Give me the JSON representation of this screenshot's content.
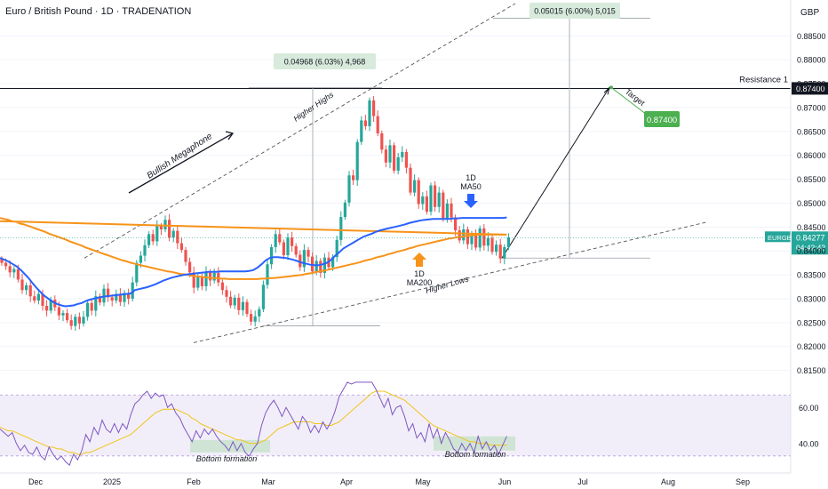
{
  "header": {
    "symbol_title": "Euro / British Pound · 1D · TRADENATION",
    "currency": "GBP"
  },
  "colors": {
    "bull": "#26a69a",
    "bear": "#ef5350",
    "ma50": "#2962ff",
    "ma200": "#f7931a",
    "rsi": "#7e57c2",
    "rsi_ma": "#f0c419",
    "label_green": "#4caf50",
    "label_bg": "#d7eadb",
    "rsi_band": "#ede7f6",
    "price_badge": "#26a69a"
  },
  "chart_data": {
    "type": "candlestick",
    "y_axis": {
      "range": [
        0.8125,
        0.8925
      ],
      "ticks": [
        "0.88500",
        "0.88000",
        "0.87500",
        "0.87000",
        "0.86500",
        "0.86000",
        "0.85500",
        "0.85000",
        "0.84500",
        "0.84000",
        "0.83500",
        "0.83000",
        "0.82500",
        "0.82000",
        "0.81500"
      ]
    },
    "rsi_axis": {
      "range": [
        33,
        70
      ],
      "ticks": [
        "60.00",
        "40.00"
      ]
    },
    "x_axis": {
      "labels": [
        "Dec",
        "2025",
        "Feb",
        "Mar",
        "Apr",
        "May",
        "Jun",
        "Jul",
        "Aug",
        "Sep"
      ]
    },
    "candles_close": [
      0.8375,
      0.8368,
      0.8355,
      0.8362,
      0.834,
      0.8318,
      0.8328,
      0.8305,
      0.8296,
      0.831,
      0.8285,
      0.8275,
      0.8298,
      0.8282,
      0.8265,
      0.827,
      0.8255,
      0.8243,
      0.8262,
      0.8248,
      0.8262,
      0.8291,
      0.8275,
      0.8305,
      0.8292,
      0.8321,
      0.8303,
      0.8296,
      0.831,
      0.8293,
      0.8312,
      0.83,
      0.8334,
      0.8375,
      0.839,
      0.8412,
      0.8435,
      0.842,
      0.8452,
      0.8445,
      0.8465,
      0.8428,
      0.8442,
      0.8416,
      0.8402,
      0.8377,
      0.8355,
      0.8323,
      0.8346,
      0.8326,
      0.8356,
      0.8338,
      0.8354,
      0.8334,
      0.8318,
      0.8304,
      0.8286,
      0.8302,
      0.8276,
      0.8293,
      0.8268,
      0.8252,
      0.8263,
      0.8278,
      0.8329,
      0.8372,
      0.8408,
      0.8435,
      0.8418,
      0.8391,
      0.8428,
      0.841,
      0.8392,
      0.8366,
      0.8402,
      0.8388,
      0.8357,
      0.8379,
      0.8354,
      0.8386,
      0.8366,
      0.8387,
      0.8423,
      0.8471,
      0.8501,
      0.8558,
      0.8548,
      0.8628,
      0.8673,
      0.8661,
      0.8715,
      0.8682,
      0.8646,
      0.8612,
      0.8585,
      0.8621,
      0.8568,
      0.8596,
      0.8607,
      0.8574,
      0.8522,
      0.8548,
      0.8498,
      0.8514,
      0.8482,
      0.8537,
      0.8492,
      0.8522,
      0.8467,
      0.8499,
      0.847,
      0.8443,
      0.8422,
      0.8445,
      0.8414,
      0.8433,
      0.8407,
      0.8447,
      0.8411,
      0.8427,
      0.8398,
      0.8413,
      0.8384,
      0.8408,
      0.8428
    ],
    "ma50": [
      0.8385,
      0.8382,
      0.8378,
      0.8373,
      0.8368,
      0.8361,
      0.8352,
      0.8343,
      0.8332,
      0.8322,
      0.8313,
      0.8305,
      0.8299,
      0.8293,
      0.8289,
      0.8286,
      0.8284,
      0.8285,
      0.8286,
      0.8289,
      0.8291,
      0.8295,
      0.8298,
      0.83,
      0.8302,
      0.8304,
      0.8305,
      0.8306,
      0.8307,
      0.8308,
      0.8309,
      0.831,
      0.8311,
      0.8318,
      0.832,
      0.8322,
      0.8324,
      0.8327,
      0.833,
      0.8334,
      0.8338,
      0.8341,
      0.8344,
      0.8346,
      0.8348,
      0.835,
      0.8351,
      0.8352,
      0.8353,
      0.8354,
      0.8355,
      0.8356,
      0.8356,
      0.8356,
      0.8357,
      0.8357,
      0.8357,
      0.8357,
      0.8357,
      0.8357,
      0.8357,
      0.8358,
      0.836,
      0.8365,
      0.8372,
      0.838,
      0.8385,
      0.8387,
      0.8387,
      0.8386,
      0.8385,
      0.8383,
      0.8381,
      0.8378,
      0.8375,
      0.8373,
      0.8371,
      0.837,
      0.837,
      0.8372,
      0.8375,
      0.8381,
      0.839,
      0.8397,
      0.8405,
      0.841,
      0.8415,
      0.842,
      0.8425,
      0.843,
      0.8433,
      0.8436,
      0.844,
      0.8443,
      0.8445,
      0.8447,
      0.8449,
      0.8451,
      0.8453,
      0.8455,
      0.8458,
      0.846,
      0.8462,
      0.8464,
      0.8465,
      0.8466,
      0.8467,
      0.8467,
      0.8467,
      0.8467,
      0.8467,
      0.8468,
      0.8468,
      0.8469,
      0.8469,
      0.8469,
      0.8469,
      0.8469,
      0.8469,
      0.8469,
      0.8469,
      0.8469,
      0.8469,
      0.8469,
      0.847
    ],
    "ma200": [
      0.8469,
      0.8467,
      0.8465,
      0.8462,
      0.846,
      0.8457,
      0.8455,
      0.8452,
      0.8449,
      0.8446,
      0.8443,
      0.844,
      0.8436,
      0.8433,
      0.843,
      0.8427,
      0.8424,
      0.842,
      0.8417,
      0.8414,
      0.8411,
      0.8407,
      0.8404,
      0.8401,
      0.8398,
      0.8395,
      0.8392,
      0.8389,
      0.8386,
      0.8383,
      0.838,
      0.8378,
      0.8375,
      0.8373,
      0.8371,
      0.8369,
      0.8367,
      0.8365,
      0.8363,
      0.8361,
      0.8359,
      0.8357,
      0.8356,
      0.8354,
      0.8352,
      0.8351,
      0.835,
      0.8348,
      0.8347,
      0.8346,
      0.8345,
      0.8344,
      0.8343,
      0.8343,
      0.8342,
      0.8342,
      0.8341,
      0.8341,
      0.8341,
      0.8341,
      0.8341,
      0.8341,
      0.8341,
      0.8341,
      0.8342,
      0.8342,
      0.8343,
      0.8343,
      0.8344,
      0.8345,
      0.8346,
      0.8347,
      0.8348,
      0.8349,
      0.835,
      0.8352,
      0.8353,
      0.8355,
      0.8357,
      0.8358,
      0.836,
      0.8362,
      0.8364,
      0.8366,
      0.8368,
      0.837,
      0.8372,
      0.8374,
      0.8376,
      0.8379,
      0.8381,
      0.8383,
      0.8386,
      0.8388,
      0.839,
      0.8393,
      0.8395,
      0.8398,
      0.84,
      0.8402,
      0.8405,
      0.8407,
      0.841,
      0.8412,
      0.8414,
      0.8416,
      0.8418,
      0.842,
      0.8422,
      0.8424,
      0.8426,
      0.8427,
      0.8429,
      0.843,
      0.8431,
      0.8432,
      0.8433,
      0.8434,
      0.8434,
      0.8434,
      0.8434,
      0.8434,
      0.8434,
      0.8434,
      0.8434
    ],
    "rsi": [
      48,
      46,
      44,
      46,
      40,
      36,
      39,
      35,
      34,
      38,
      33,
      31,
      38,
      34,
      31,
      33,
      30,
      28,
      34,
      31,
      36,
      45,
      41,
      49,
      45,
      53,
      48,
      46,
      51,
      46,
      51,
      48,
      56,
      62,
      64,
      67,
      69,
      65,
      68,
      66,
      67,
      60,
      62,
      57,
      54,
      49,
      45,
      41,
      47,
      43,
      48,
      45,
      48,
      44,
      41,
      39,
      36,
      41,
      36,
      40,
      35,
      33,
      37,
      40,
      50,
      57,
      61,
      64,
      60,
      55,
      60,
      56,
      52,
      48,
      55,
      52,
      46,
      50,
      46,
      52,
      48,
      52,
      58,
      66,
      70,
      76,
      73,
      80,
      83,
      80,
      86,
      78,
      70,
      65,
      60,
      65,
      56,
      60,
      61,
      55,
      47,
      51,
      43,
      46,
      41,
      51,
      43,
      48,
      40,
      46,
      42,
      37,
      35,
      40,
      36,
      40,
      35,
      44,
      37,
      41,
      36,
      39,
      34,
      39,
      44
    ],
    "rsi_ma": [
      49,
      48,
      47,
      47,
      46,
      45,
      44,
      43,
      42,
      41,
      40,
      39,
      38,
      38,
      37,
      37,
      36,
      35,
      35,
      34,
      34,
      35,
      35,
      36,
      37,
      38,
      39,
      40,
      41,
      42,
      43,
      44,
      45,
      47,
      49,
      51,
      53,
      55,
      57,
      58,
      59,
      59,
      59,
      59,
      58,
      57,
      56,
      54,
      53,
      51,
      50,
      49,
      48,
      47,
      46,
      45,
      44,
      43,
      42,
      42,
      41,
      40,
      40,
      40,
      41,
      42,
      44,
      46,
      48,
      49,
      50,
      51,
      52,
      52,
      52,
      52,
      52,
      51,
      51,
      51,
      50,
      50,
      51,
      52,
      54,
      56,
      58,
      60,
      62,
      64,
      66,
      68,
      69,
      69,
      69,
      68,
      67,
      66,
      65,
      64,
      62,
      60,
      58,
      56,
      54,
      52,
      50,
      49,
      48,
      47,
      46,
      45,
      44,
      43,
      42,
      41,
      41,
      40,
      40,
      40,
      39,
      39,
      39,
      39,
      39
    ],
    "annotations": {
      "current_price": "0.84277",
      "countdown": "04:42:42",
      "ticker_badge": "EURGBP",
      "resistance_price": "0.87400",
      "resistance_label": "Resistance 1",
      "target_label": "Target",
      "target_price": "0.87400",
      "measure_1": "0.04968 (6.03%) 4,968",
      "measure_2": "0.05015 (6.00%) 5,015",
      "pattern_label": "Bullish Megaphone",
      "higher_highs": "Higher Highs",
      "higher_lows": "Higher Lows",
      "ma50_label_1": "1D",
      "ma50_label_2": "MA50",
      "ma200_label_1": "1D",
      "ma200_label_2": "MA200",
      "bottom_1": "Bottom formation",
      "bottom_2": "Bottom formation"
    }
  }
}
